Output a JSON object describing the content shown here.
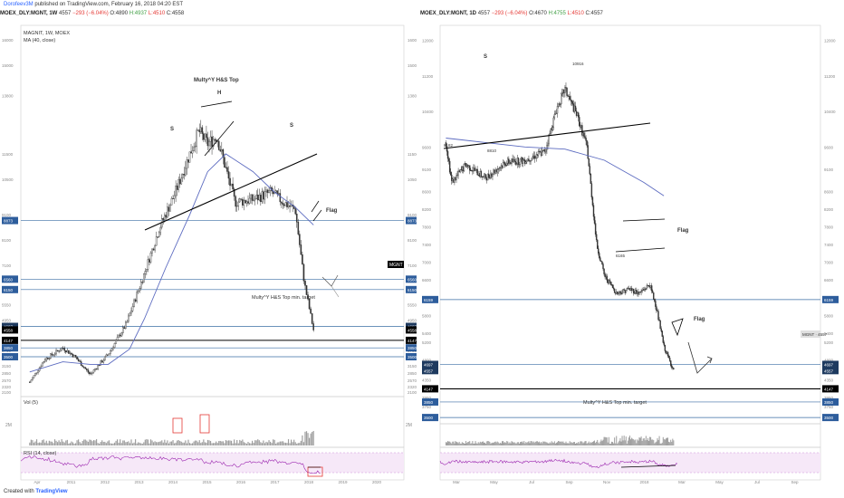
{
  "header": {
    "author": "Dorofeev3M",
    "published": "published on TradingView.com, February 16, 2018 04:20 EST"
  },
  "footer": {
    "created_with": "Created with",
    "brand": "TradingView"
  },
  "colors": {
    "price": "#333333",
    "ma": "#5c6bc0",
    "level_blue": "#3a6ea5",
    "level_black": "#000000",
    "rsi": "#9c27b0",
    "rsi_band": "#f3e5f5",
    "volume": "#9e9e9e",
    "highlight": "#e53935"
  },
  "left": {
    "symbol": "MOEX_DLY:MGNT, 1W",
    "last": "4557",
    "change": "−293 (−6.04%)",
    "o": "O:4890",
    "h": "H:4937",
    "l": "L:4510",
    "c": "C:4558",
    "legend_main": "MAGNIT, 1W, MOEX",
    "legend_ma": "MA (40, close)",
    "legend_vol": "Vol (5)",
    "legend_rsi": "RSI (14, close)",
    "ann_top": "Multy^Y H&S Top",
    "ann_h": "H",
    "ann_s1": "S",
    "ann_s2": "S",
    "ann_flag": "Flag",
    "ann_target": "Multy^Y H&S Top min. target",
    "ticker_tag": "MGNT"
  },
  "right": {
    "symbol": "MOEX_DLY:MGNT, 1D",
    "last": "4557",
    "change": "−293 (−6.04%)",
    "o": "O:4670",
    "h": "H:4755",
    "l": "L:4510",
    "c": "C:4557",
    "ann_s": "S",
    "ann_flag1": "Flag",
    "ann_flag2": "Flag",
    "ann_target": "Multy^Y H&S Top min. target",
    "ann_peak": "10916",
    "ann_low1": "8810",
    "ann_low2": "8182",
    "ann_low3": "6165",
    "ticker_tag": "MGNT · 4557"
  },
  "chart_data": [
    {
      "type": "line",
      "title": "MAGNIT, 1W, MOEX",
      "timeframe": "1W",
      "x_tick_labels": [
        "Apr",
        "2011",
        "2012",
        "2013",
        "2014",
        "2015",
        "2016",
        "2017",
        "2018",
        "2019",
        "2020"
      ],
      "y_tick_labels": [
        "16000",
        "15000",
        "13800",
        "11500",
        "10500",
        "9100",
        "8100",
        "7100",
        "6150",
        "5550",
        "4950",
        "4250",
        "3750",
        "3150",
        "2850",
        "2570",
        "2320",
        "2100"
      ],
      "ylim": [
        2000,
        16500
      ],
      "price_tags": [
        "8873",
        "6560",
        "6150",
        "4697",
        "4558",
        "4147",
        "3850",
        "3500"
      ],
      "series": [
        {
          "name": "MAGNIT",
          "x": [
            "2010-04",
            "2010-09",
            "2011-03",
            "2011-07",
            "2011-12",
            "2012-06",
            "2012-12",
            "2013-06",
            "2013-11",
            "2014-04",
            "2014-09",
            "2014-12",
            "2015-03",
            "2015-06",
            "2015-09",
            "2015-12",
            "2016-06",
            "2016-12",
            "2017-04",
            "2017-08",
            "2017-11",
            "2018-02"
          ],
          "y": [
            2500,
            3400,
            3850,
            3500,
            2800,
            3600,
            4800,
            6800,
            8600,
            9900,
            11500,
            12400,
            11900,
            12200,
            10900,
            9600,
            9700,
            10000,
            9600,
            9300,
            6400,
            4557
          ]
        },
        {
          "name": "MA (40, close)",
          "x": [
            "2010-04",
            "2011-03",
            "2011-12",
            "2012-06",
            "2013-01",
            "2013-06",
            "2014-01",
            "2014-09",
            "2015-03",
            "2015-09",
            "2016-06",
            "2017-01",
            "2017-08",
            "2018-02"
          ],
          "y": [
            2900,
            3300,
            3200,
            3200,
            3800,
            5000,
            7000,
            9100,
            10800,
            11500,
            10800,
            10000,
            9400,
            8700
          ]
        }
      ],
      "levels": [
        8873,
        6560,
        6150,
        4697,
        4147,
        3850,
        3500
      ],
      "rsi_band": [
        40,
        80
      ],
      "volume_label": "2M"
    },
    {
      "type": "line",
      "title": "MOEX_DLY:MGNT, 1D",
      "timeframe": "1D",
      "x_tick_labels": [
        "Mar",
        "May",
        "Jul",
        "Sep",
        "Nov",
        "2018",
        "Mar",
        "May",
        "Jul",
        "Sep"
      ],
      "y_tick_labels": [
        "12000",
        "11200",
        "10400",
        "9600",
        "9100",
        "8600",
        "8200",
        "7800",
        "7400",
        "7000",
        "6600",
        "6200",
        "5800",
        "5400",
        "5200",
        "4800",
        "4550",
        "4350",
        "3950",
        "3750"
      ],
      "ylim": [
        3400,
        12300
      ],
      "price_tags": [
        "6159",
        "4697",
        "4557",
        "4147",
        "3850",
        "3500"
      ],
      "series": [
        {
          "name": "MGNT",
          "x": [
            "2017-03-01",
            "2017-03-10",
            "2017-04-01",
            "2017-05-01",
            "2017-06-01",
            "2017-07-01",
            "2017-08-01",
            "2017-08-20",
            "2017-09-01",
            "2017-09-20",
            "2017-10-05",
            "2017-10-20",
            "2017-11-01",
            "2017-11-20",
            "2017-12-10",
            "2017-12-25",
            "2018-01-10",
            "2018-01-20",
            "2018-02-01",
            "2018-02-16"
          ],
          "y": [
            9700,
            8800,
            9200,
            8900,
            9250,
            9300,
            9500,
            10500,
            10900,
            10300,
            9600,
            7400,
            6700,
            6300,
            6400,
            6300,
            6500,
            6000,
            5100,
            4557
          ]
        },
        {
          "name": "MA",
          "x": [
            "2017-03-01",
            "2017-05-01",
            "2017-07-01",
            "2017-09-01",
            "2017-11-01",
            "2018-01-01",
            "2018-02-01"
          ],
          "y": [
            9800,
            9700,
            9600,
            9550,
            9300,
            8800,
            8500
          ]
        }
      ],
      "levels": [
        6159,
        4697,
        4147,
        3850,
        3500
      ],
      "rsi_band": [
        40,
        80
      ]
    }
  ]
}
